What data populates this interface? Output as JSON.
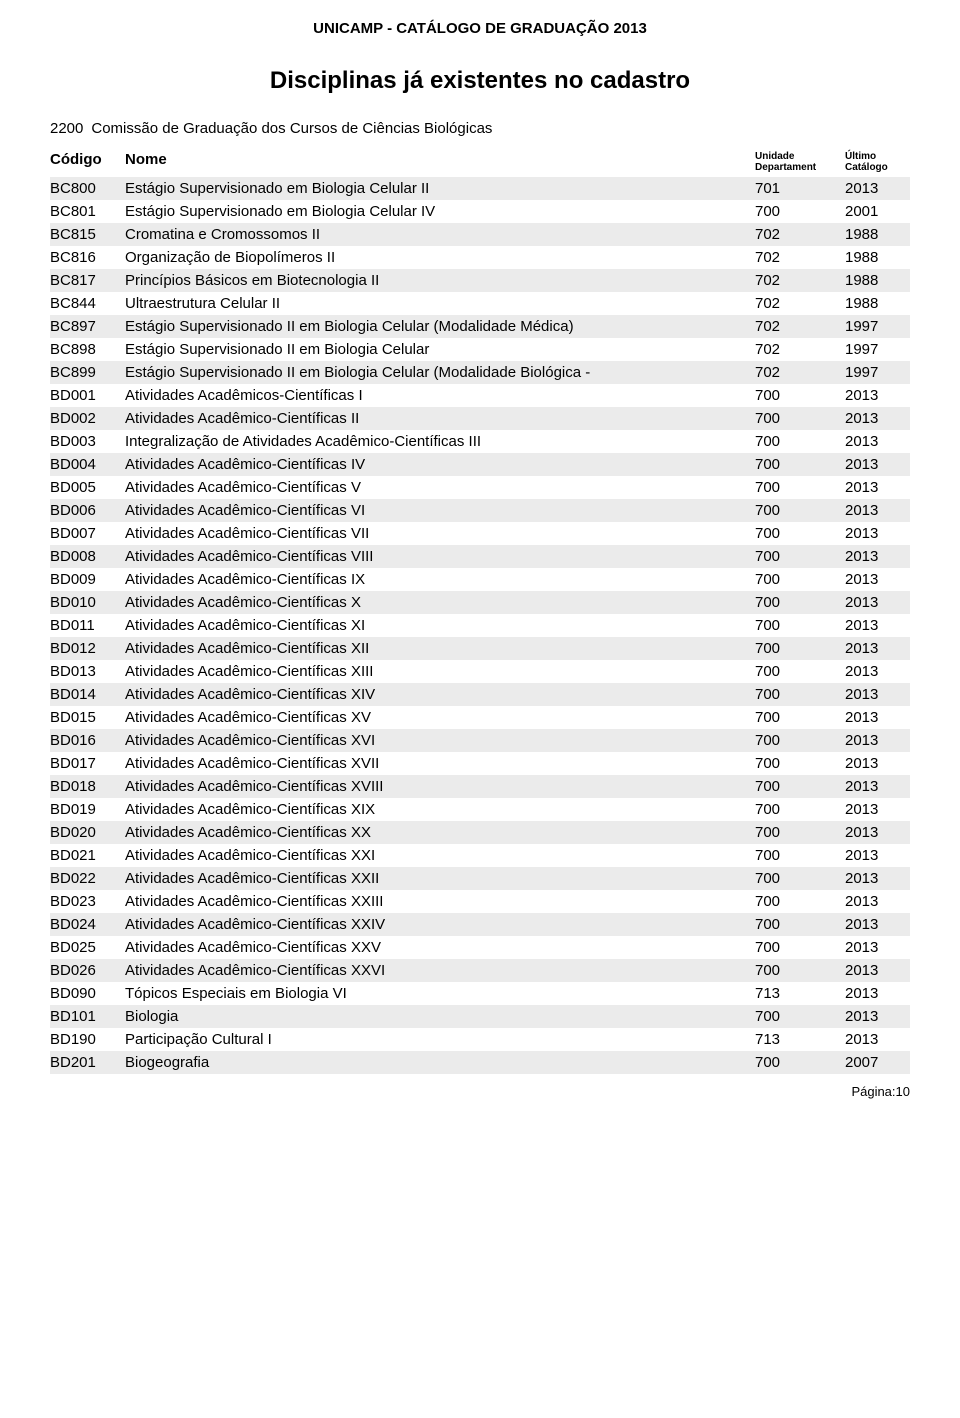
{
  "header": "UNICAMP - CATÁLOGO DE GRADUAÇÃO 2013",
  "title": "Disciplinas já existentes no cadastro",
  "section": {
    "code": "2200",
    "name": "Comissão de Graduação dos Cursos de Ciências Biológicas"
  },
  "columns": {
    "codigo": "Código",
    "nome": "Nome",
    "unidade_line1": "Unidade",
    "unidade_line2": "Departament",
    "catalogo_line1": "Último",
    "catalogo_line2": "Catálogo"
  },
  "rows": [
    {
      "codigo": "BC800",
      "nome": "Estágio Supervisionado em Biologia Celular II",
      "unidade": "701",
      "catalogo": "2013"
    },
    {
      "codigo": "BC801",
      "nome": "Estágio Supervisionado em Biologia Celular IV",
      "unidade": "700",
      "catalogo": "2001"
    },
    {
      "codigo": "BC815",
      "nome": "Cromatina e Cromossomos II",
      "unidade": "702",
      "catalogo": "1988"
    },
    {
      "codigo": "BC816",
      "nome": "Organização de Biopolímeros II",
      "unidade": "702",
      "catalogo": "1988"
    },
    {
      "codigo": "BC817",
      "nome": "Princípios Básicos em Biotecnologia II",
      "unidade": "702",
      "catalogo": "1988"
    },
    {
      "codigo": "BC844",
      "nome": "Ultraestrutura Celular II",
      "unidade": "702",
      "catalogo": "1988"
    },
    {
      "codigo": "BC897",
      "nome": "Estágio Supervisionado II em Biologia Celular (Modalidade Médica)",
      "unidade": "702",
      "catalogo": "1997"
    },
    {
      "codigo": "BC898",
      "nome": "Estágio Supervisionado II em Biologia Celular",
      "unidade": "702",
      "catalogo": "1997"
    },
    {
      "codigo": "BC899",
      "nome": "Estágio Supervisionado II em Biologia Celular (Modalidade Biológica -",
      "unidade": "702",
      "catalogo": "1997"
    },
    {
      "codigo": "BD001",
      "nome": "Atividades Acadêmicos-Científicas I",
      "unidade": "700",
      "catalogo": "2013"
    },
    {
      "codigo": "BD002",
      "nome": "Atividades Acadêmico-Científicas II",
      "unidade": "700",
      "catalogo": "2013"
    },
    {
      "codigo": "BD003",
      "nome": "Integralização de Atividades Acadêmico-Científicas III",
      "unidade": "700",
      "catalogo": "2013"
    },
    {
      "codigo": "BD004",
      "nome": "Atividades Acadêmico-Científicas IV",
      "unidade": "700",
      "catalogo": "2013"
    },
    {
      "codigo": "BD005",
      "nome": "Atividades Acadêmico-Científicas V",
      "unidade": "700",
      "catalogo": "2013"
    },
    {
      "codigo": "BD006",
      "nome": "Atividades Acadêmico-Científicas VI",
      "unidade": "700",
      "catalogo": "2013"
    },
    {
      "codigo": "BD007",
      "nome": "Atividades Acadêmico-Científicas VII",
      "unidade": "700",
      "catalogo": "2013"
    },
    {
      "codigo": "BD008",
      "nome": "Atividades Acadêmico-Científicas VIII",
      "unidade": "700",
      "catalogo": "2013"
    },
    {
      "codigo": "BD009",
      "nome": "Atividades Acadêmico-Científicas IX",
      "unidade": "700",
      "catalogo": "2013"
    },
    {
      "codigo": "BD010",
      "nome": "Atividades Acadêmico-Científicas X",
      "unidade": "700",
      "catalogo": "2013"
    },
    {
      "codigo": "BD011",
      "nome": "Atividades Acadêmico-Científicas XI",
      "unidade": "700",
      "catalogo": "2013"
    },
    {
      "codigo": "BD012",
      "nome": "Atividades Acadêmico-Científicas XII",
      "unidade": "700",
      "catalogo": "2013"
    },
    {
      "codigo": "BD013",
      "nome": "Atividades Acadêmico-Científicas XIII",
      "unidade": "700",
      "catalogo": "2013"
    },
    {
      "codigo": "BD014",
      "nome": "Atividades Acadêmico-Científicas XIV",
      "unidade": "700",
      "catalogo": "2013"
    },
    {
      "codigo": "BD015",
      "nome": "Atividades Acadêmico-Científicas XV",
      "unidade": "700",
      "catalogo": "2013"
    },
    {
      "codigo": "BD016",
      "nome": "Atividades Acadêmico-Científicas XVI",
      "unidade": "700",
      "catalogo": "2013"
    },
    {
      "codigo": "BD017",
      "nome": "Atividades Acadêmico-Científicas XVII",
      "unidade": "700",
      "catalogo": "2013"
    },
    {
      "codigo": "BD018",
      "nome": "Atividades Acadêmico-Científicas XVIII",
      "unidade": "700",
      "catalogo": "2013"
    },
    {
      "codigo": "BD019",
      "nome": "Atividades Acadêmico-Científicas XIX",
      "unidade": "700",
      "catalogo": "2013"
    },
    {
      "codigo": "BD020",
      "nome": "Atividades Acadêmico-Científicas XX",
      "unidade": "700",
      "catalogo": "2013"
    },
    {
      "codigo": "BD021",
      "nome": "Atividades Acadêmico-Científicas XXI",
      "unidade": "700",
      "catalogo": "2013"
    },
    {
      "codigo": "BD022",
      "nome": "Atividades Acadêmico-Científicas XXII",
      "unidade": "700",
      "catalogo": "2013"
    },
    {
      "codigo": "BD023",
      "nome": "Atividades Acadêmico-Científicas XXIII",
      "unidade": "700",
      "catalogo": "2013"
    },
    {
      "codigo": "BD024",
      "nome": "Atividades Acadêmico-Científicas XXIV",
      "unidade": "700",
      "catalogo": "2013"
    },
    {
      "codigo": "BD025",
      "nome": "Atividades Acadêmico-Científicas XXV",
      "unidade": "700",
      "catalogo": "2013"
    },
    {
      "codigo": "BD026",
      "nome": "Atividades Acadêmico-Científicas XXVI",
      "unidade": "700",
      "catalogo": "2013"
    },
    {
      "codigo": "BD090",
      "nome": "Tópicos Especiais em Biologia VI",
      "unidade": "713",
      "catalogo": "2013"
    },
    {
      "codigo": "BD101",
      "nome": "Biologia",
      "unidade": "700",
      "catalogo": "2013"
    },
    {
      "codigo": "BD190",
      "nome": "Participação Cultural I",
      "unidade": "713",
      "catalogo": "2013"
    },
    {
      "codigo": "BD201",
      "nome": "Biogeografia",
      "unidade": "700",
      "catalogo": "2007"
    }
  ],
  "footer": "Página:10",
  "styling": {
    "row_alt_bg": "#ebebeb",
    "body_bg": "#ffffff",
    "text_color": "#000000"
  }
}
